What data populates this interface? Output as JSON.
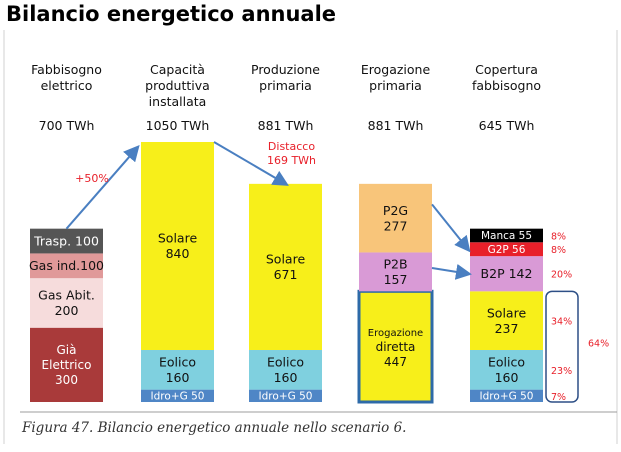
{
  "title": "Bilancio energetico annuale",
  "caption": "Figura 47. Bilancio energetico annuale nello scenario 6.",
  "chart_data": {
    "type": "bar",
    "stacked": true,
    "unit": "TWh",
    "columns": [
      {
        "header": [
          "Fabbisogno",
          "elettrico"
        ],
        "total_label": "700 TWh",
        "total": 700,
        "segments": [
          {
            "label": [
              "Già",
              "Elettrico",
              "300"
            ],
            "value": 300,
            "color": "#a93a3a",
            "text_color": "#ffffff"
          },
          {
            "label": [
              "Gas Abit.",
              "200"
            ],
            "value": 200,
            "color": "#f6dcdc",
            "text_color": "#111111"
          },
          {
            "label": [
              "Gas  ind.100"
            ],
            "value": 100,
            "color": "#e09999",
            "text_color": "#111111"
          },
          {
            "label": [
              "Trasp. 100"
            ],
            "value": 100,
            "color": "#555555",
            "text_color": "#ffffff"
          }
        ]
      },
      {
        "header": [
          "Capacità",
          "produttiva",
          "installata"
        ],
        "total_label": "1050 TWh",
        "total": 1050,
        "segments": [
          {
            "label": [
              "Idro+G 50"
            ],
            "value": 50,
            "color": "#4f86c6",
            "text_color": "#ffffff"
          },
          {
            "label": [
              "Eolico",
              "160"
            ],
            "value": 160,
            "color": "#7fd0df",
            "text_color": "#111111"
          },
          {
            "label": [
              "Solare",
              "840"
            ],
            "value": 840,
            "color": "#f7ef1a",
            "text_color": "#111111"
          }
        ]
      },
      {
        "header": [
          "Produzione",
          "primaria"
        ],
        "total_label": "881 TWh",
        "total": 881,
        "segments": [
          {
            "label": [
              "Idro+G 50"
            ],
            "value": 50,
            "color": "#4f86c6",
            "text_color": "#ffffff"
          },
          {
            "label": [
              "Eolico",
              "160"
            ],
            "value": 160,
            "color": "#7fd0df",
            "text_color": "#111111"
          },
          {
            "label": [
              "Solare",
              "671"
            ],
            "value": 671,
            "color": "#f7ef1a",
            "text_color": "#111111"
          }
        ]
      },
      {
        "header": [
          "Erogazione",
          "primaria"
        ],
        "total_label": "881 TWh",
        "total": 881,
        "segments": [
          {
            "label": [
              "Erogazione",
              "diretta",
              "447"
            ],
            "value": 447,
            "color": "#f7ef1a",
            "text_color": "#111111",
            "outlined": true
          },
          {
            "label": [
              "P2B",
              "157"
            ],
            "value": 157,
            "color": "#d99ad6",
            "text_color": "#111111"
          },
          {
            "label": [
              "P2G",
              "277"
            ],
            "value": 277,
            "color": "#f8c57a",
            "text_color": "#111111"
          }
        ]
      },
      {
        "header": [
          "Copertura",
          "fabbisogno"
        ],
        "total_label": "645 TWh",
        "total": 700,
        "segments": [
          {
            "label": [
              "Idro+G 50"
            ],
            "value": 50,
            "color": "#4f86c6",
            "text_color": "#ffffff",
            "pct": "7%"
          },
          {
            "label": [
              "Eolico",
              "160"
            ],
            "value": 160,
            "color": "#7fd0df",
            "text_color": "#111111",
            "pct": "23%"
          },
          {
            "label": [
              "Solare",
              "237"
            ],
            "value": 237,
            "color": "#f7ef1a",
            "text_color": "#111111",
            "pct": "34%"
          },
          {
            "label": [
              "B2P 142"
            ],
            "value": 142,
            "color": "#d99ad6",
            "text_color": "#111111",
            "pct": "20%"
          },
          {
            "label": [
              "G2P 56"
            ],
            "value": 56,
            "color": "#e8202a",
            "text_color": "#ffffff",
            "pct": "8%"
          },
          {
            "label": [
              "Manca 55"
            ],
            "value": 55,
            "color": "#000000",
            "text_color": "#ffffff",
            "pct": "8%"
          }
        ]
      }
    ],
    "annotations": {
      "growth": "+50%",
      "gap": [
        "Distacco",
        "169 TWh"
      ],
      "renewable_share": "64%"
    },
    "colors": {
      "annotation": "#e8202a",
      "arrow": "#4a7fc1"
    }
  }
}
